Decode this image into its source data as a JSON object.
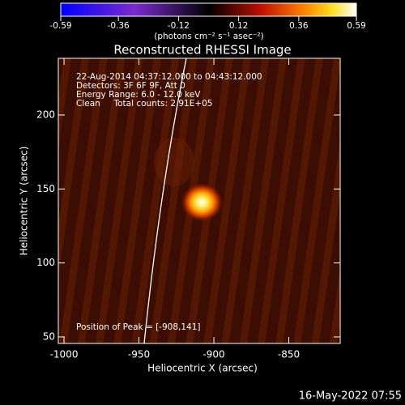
{
  "chart_data": {
    "type": "image",
    "title": "Reconstructed RHESSI Image",
    "xlabel": "Heliocentric X (arcsec)",
    "ylabel": "Heliocentric Y (arcsec)",
    "xlim": [
      -1003.8,
      -815.7
    ],
    "xticks": [
      -1000,
      -950,
      -900,
      -850
    ],
    "ylim": [
      45.6,
      238.3
    ],
    "yticks": [
      50,
      100,
      150,
      200
    ],
    "colorbar": {
      "label": "(photons cm⁻² s⁻¹ asec⁻²)",
      "clim": [
        -0.59,
        0.59
      ],
      "ticks": [
        -0.59,
        -0.36,
        -0.12,
        0.12,
        0.36,
        0.59
      ]
    },
    "peak": {
      "x": -908,
      "y": 141
    },
    "annotations": [
      "22-Aug-2014 04:37:12.000 to 04:43:12.000",
      "Detectors: 3F 6F 9F, Att 0",
      "Energy Range: 6.0 - 12.0 keV",
      "Clean     Total counts: 2.91E+05"
    ],
    "peak_label": "Position of Peak = [-908,141]",
    "footer": "16-May-2022 07:55"
  }
}
